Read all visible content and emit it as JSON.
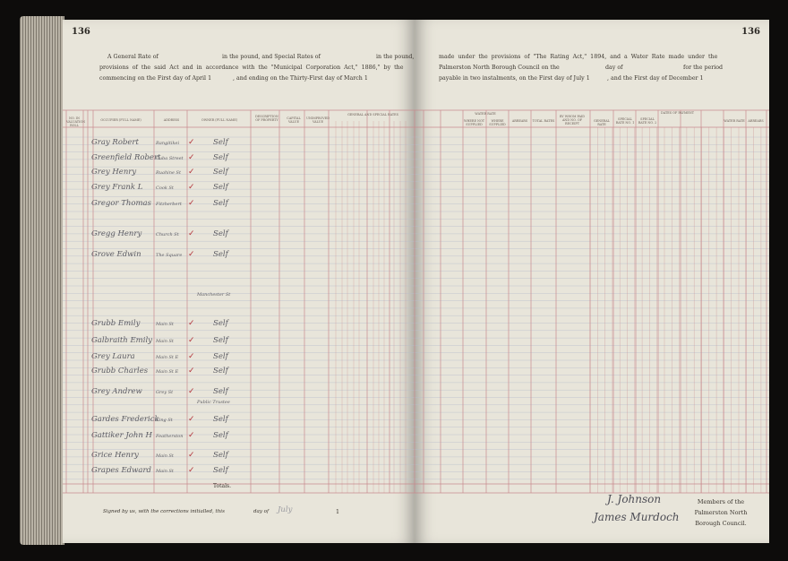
{
  "page_number_left": "136",
  "page_number_right": "136",
  "heading_left": {
    "line1": "A General Rate of",
    "line1_b": "in the pound, and Special Rates of",
    "line1_c": "in the pound,",
    "line2": "provisions of the said Act and in accordance with the \"Municipal Corporation Act,\" 1886,\" by the",
    "line3": "commencing on the First day of April 1",
    "line3_b": ", and ending on the Thirty-First day of March 1"
  },
  "heading_right": {
    "line1": "made under the provisions of \"The Rating Act,\" 1894, and a Water Rate made under the",
    "line2": "Palmerston North Borough Council on the",
    "line2_b": "day of",
    "line2_c": "for the period",
    "line3": "payable in two instalments, on the First day of July 1",
    "line3_b": ", and the First day of December 1"
  },
  "columns_left": [
    "No. in Valuation Roll",
    "Occupier (Full name)",
    "Address",
    "Owner (Full name)",
    "Description of Property",
    "Capital Value",
    "Unimproved Value",
    "General and Special Rates"
  ],
  "columns_right": [
    "Water Rate",
    "Where not Supplied",
    "Where Supplied",
    "Arrears",
    "Total Rates",
    "By whom paid and No. of Receipt",
    "Dates of Payment",
    "General Rate",
    "Special Rate No. 1",
    "Special Rate No. 2",
    "Water Rate",
    "Arrears"
  ],
  "rows": [
    {
      "occupier": "Gray Robert",
      "address": "Rangitikei",
      "owner": "Self"
    },
    {
      "occupier": "Greenfield Robert",
      "address": "Cuba Street",
      "owner": "Self"
    },
    {
      "occupier": "Grey Henry",
      "address": "Ruahine St",
      "owner": "Self"
    },
    {
      "occupier": "Grey Frank L",
      "address": "Cook St",
      "owner": "Self"
    },
    {
      "occupier": "Gregor Thomas",
      "address": "Fitzherbert",
      "owner": "Self"
    },
    {
      "occupier": "Gregg Henry",
      "address": "Church St",
      "owner": "Self"
    },
    {
      "occupier": "Grove Edwin",
      "address": "The Square",
      "owner": "Self"
    },
    {
      "occupier": "Grubb Emily",
      "address": "Main St",
      "owner": "Self"
    },
    {
      "occupier": "Galbraith Emily",
      "address": "Main St",
      "owner": "Self"
    },
    {
      "occupier": "Grey Laura",
      "address": "Main St E",
      "owner": "Self"
    },
    {
      "occupier": "Grubb Charles",
      "address": "Main St E",
      "owner": "Self"
    },
    {
      "occupier": "Grey Andrew",
      "address": "Grey St",
      "owner": "Self"
    },
    {
      "occupier": "Gardes Frederick",
      "address": "King St",
      "owner": "Self"
    },
    {
      "occupier": "Gattiker John H",
      "address": "Featherston",
      "owner": "Self"
    },
    {
      "occupier": "Grice Henry",
      "address": "Main St",
      "owner": "Self"
    },
    {
      "occupier": "Grapes Edward",
      "address": "Main St",
      "owner": "Self"
    }
  ],
  "notes": {
    "manchester": "Manchester St",
    "public_trustee": "Public Trustee"
  },
  "totals_label": "Totals.",
  "footer": {
    "signed_text": "Signed by us, with the corrections initialled, this",
    "day_of": "day of",
    "month": "July",
    "year_prefix": "1",
    "members": [
      "Members of the",
      "Palmerston North",
      "Borough Council."
    ],
    "signatures": [
      "J. Johnson",
      "James Murdoch"
    ]
  },
  "colors": {
    "page": "#e8e5da",
    "red_rule": "#c98a8e",
    "blue_rule": "#b8bccb"
  }
}
